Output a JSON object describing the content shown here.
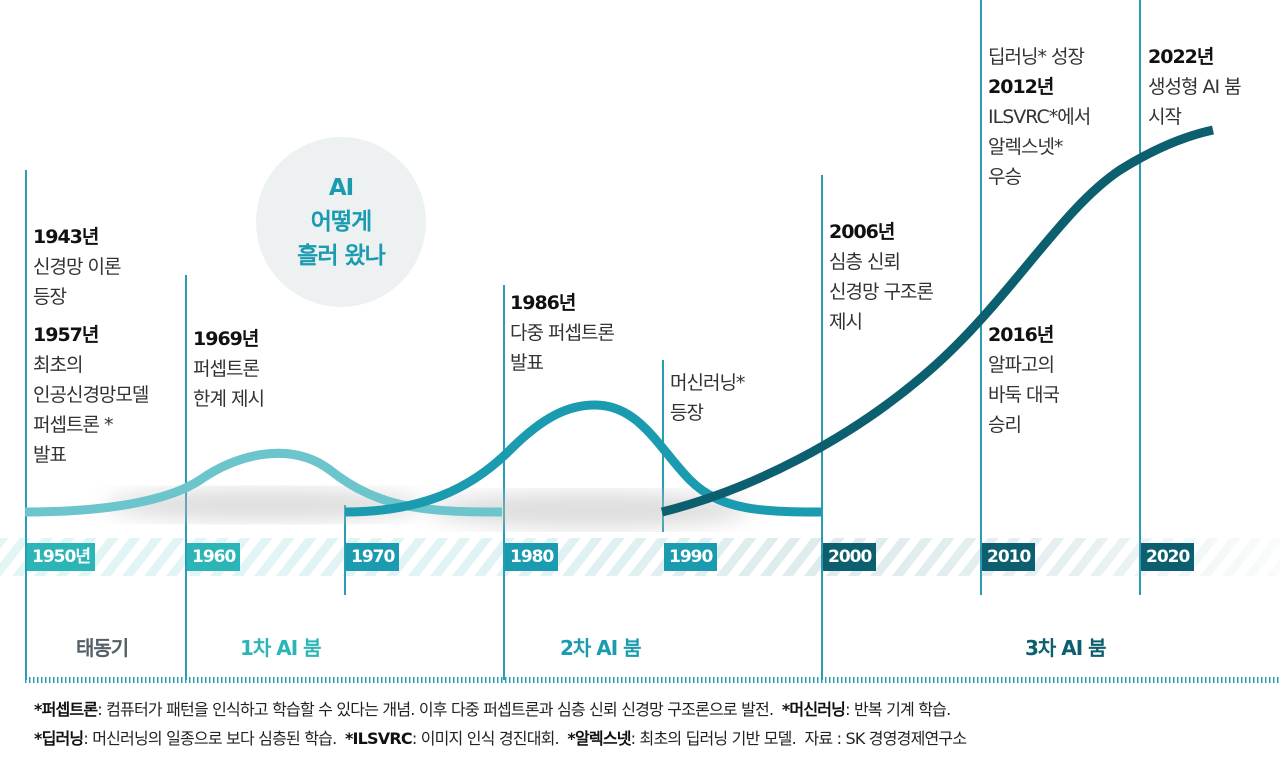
{
  "title": {
    "line1": "AI",
    "line2": "어떻게",
    "line3": "흘러 왔나"
  },
  "colors": {
    "early": "#6cc4cc",
    "mid": "#1a9bb0",
    "late": "#0b5f6e",
    "era_dawn": "#556066",
    "era_first": "#2bb5b6",
    "era_second": "#1a9bb0",
    "era_third": "#0b5f6e"
  },
  "events": [
    {
      "year": "1943년",
      "lines": [
        "신경망 이론",
        "등장"
      ]
    },
    {
      "year": "1957년",
      "lines": [
        "최초의",
        "인공신경망모델",
        "퍼셉트론 *",
        "발표"
      ]
    },
    {
      "year": "1969년",
      "lines": [
        "퍼셉트론",
        "한계 제시"
      ]
    },
    {
      "year": "1986년",
      "lines": [
        "다중 퍼셉트론",
        "발표"
      ]
    },
    {
      "year": "",
      "lines": [
        "머신러닝*",
        "등장"
      ]
    },
    {
      "year": "2006년",
      "lines": [
        "심층 신뢰",
        "신경망 구조론",
        "제시"
      ]
    },
    {
      "year": "2012년",
      "pre": "딥러닝* 성장",
      "lines": [
        "ILSVRC*에서",
        "알렉스넷*",
        "우승"
      ]
    },
    {
      "year": "2016년",
      "lines": [
        "알파고의",
        "바둑 대국",
        "승리"
      ]
    },
    {
      "year": "2022년",
      "lines": [
        "생성형 AI 붐",
        "시작"
      ]
    }
  ],
  "timeline": {
    "decades": [
      "1950년",
      "1960",
      "1970",
      "1980",
      "1990",
      "2000",
      "2010",
      "2020"
    ]
  },
  "eras": [
    "태동기",
    "1차 AI 붐",
    "2차 AI 붐",
    "3차 AI 붐"
  ],
  "footnotes": {
    "line1": [
      {
        "term": "*퍼셉트론",
        "desc": ": 컴퓨터가 패턴을 인식하고 학습할 수 있다는 개념. 이후 다중 퍼셉트론과 심층 신뢰 신경망 구조론으로 발전.  "
      },
      {
        "term": "*머신러닝",
        "desc": ": 반복 기계 학습."
      }
    ],
    "line2": [
      {
        "term": "*딥러닝",
        "desc": ": 머신러닝의 일종으로 보다 심층된 학습.  "
      },
      {
        "term": "*ILSVRC",
        "desc": ": 이미지 인식 경진대회.  "
      },
      {
        "term": "*알렉스넷",
        "desc": ": 최초의 딥러닝 기반 모델.  "
      }
    ],
    "source": "자료 : SK 경영경제연구소"
  }
}
